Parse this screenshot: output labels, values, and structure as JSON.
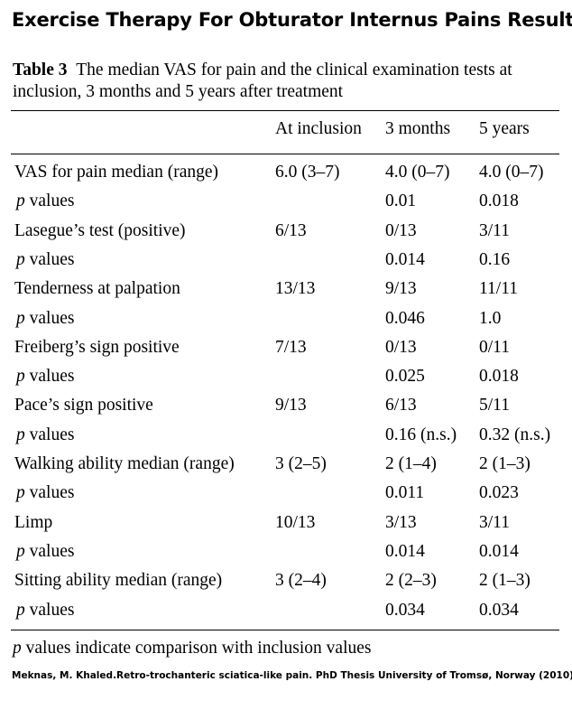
{
  "heading": "Exercise Therapy For Obturator Internus Pains Results",
  "table": {
    "label": "Table 3",
    "caption": "The median VAS for pain and the clinical examination tests at inclusion, 3 months and 5 years after treatment",
    "columns": [
      "At inclusion",
      "3 months",
      "5 years"
    ],
    "p_symbol": "p",
    "p_suffix": " values",
    "rows": [
      {
        "label": "VAS for pain median (range)",
        "values": [
          "6.0 (3–7)",
          "4.0 (0–7)",
          "4.0 (0–7)"
        ],
        "p_values": [
          "0.01",
          "0.018"
        ]
      },
      {
        "label": "Lasegue’s test (positive)",
        "values": [
          "6/13",
          "0/13",
          "3/11"
        ],
        "p_values": [
          "0.014",
          "0.16"
        ]
      },
      {
        "label": "Tenderness at palpation",
        "values": [
          "13/13",
          "9/13",
          "11/11"
        ],
        "p_values": [
          "0.046",
          "1.0"
        ]
      },
      {
        "label": "Freiberg’s sign positive",
        "values": [
          "7/13",
          "0/13",
          "0/11"
        ],
        "p_values": [
          "0.025",
          "0.018"
        ]
      },
      {
        "label": "Pace’s sign positive",
        "values": [
          "9/13",
          "6/13",
          "5/11"
        ],
        "p_values": [
          "0.16 (n.s.)",
          "0.32 (n.s.)"
        ]
      },
      {
        "label": "Walking ability median (range)",
        "values": [
          "3 (2–5)",
          "2 (1–4)",
          "2 (1–3)"
        ],
        "p_values": [
          "0.011",
          "0.023"
        ]
      },
      {
        "label": "Limp",
        "values": [
          "10/13",
          "3/13",
          "3/11"
        ],
        "p_values": [
          "0.014",
          "0.014"
        ]
      },
      {
        "label": "Sitting ability median (range)",
        "values": [
          "3 (2–4)",
          "2 (2–3)",
          "2 (1–3)"
        ],
        "p_values": [
          "0.034",
          "0.034"
        ]
      }
    ],
    "footnote_symbol": "p",
    "footnote_text": " values indicate comparison with inclusion values"
  },
  "citation": "Meknas, M. Khaled.Retro-trochanteric sciatica-like pain. PhD Thesis University of Tromsø, Norway  (2010)."
}
